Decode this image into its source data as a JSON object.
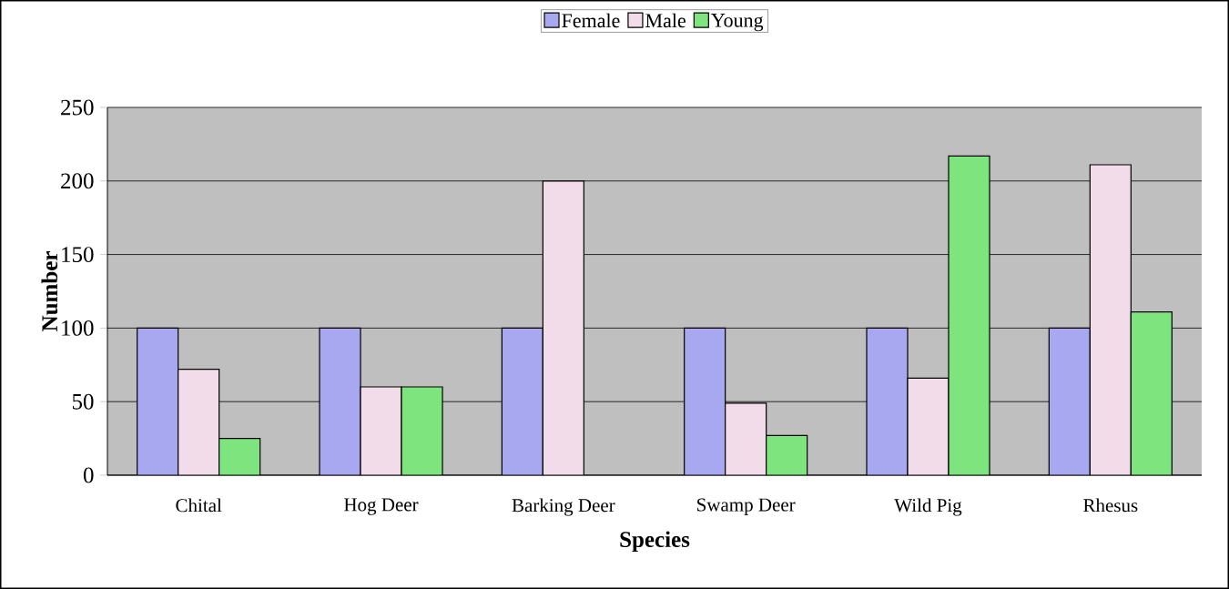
{
  "chart_data": {
    "type": "bar",
    "xlabel": "Species",
    "ylabel": "Number",
    "categories": [
      "Chital",
      "Hog Deer",
      "Barking Deer",
      "Swamp Deer",
      "Wild Pig",
      "Rhesus"
    ],
    "series": [
      {
        "name": "Female",
        "color": "#a8a8f0",
        "values": [
          100,
          100,
          100,
          100,
          100,
          100
        ]
      },
      {
        "name": "Male",
        "color": "#f2dcea",
        "values": [
          72,
          60,
          200,
          49,
          66,
          211
        ]
      },
      {
        "name": "Young",
        "color": "#7ee47e",
        "values": [
          25,
          60,
          null,
          27,
          217,
          111
        ]
      }
    ],
    "ylim": [
      0,
      250
    ],
    "yticks": [
      0,
      50,
      100,
      150,
      200,
      250
    ],
    "grid": "y",
    "legend": "top"
  }
}
